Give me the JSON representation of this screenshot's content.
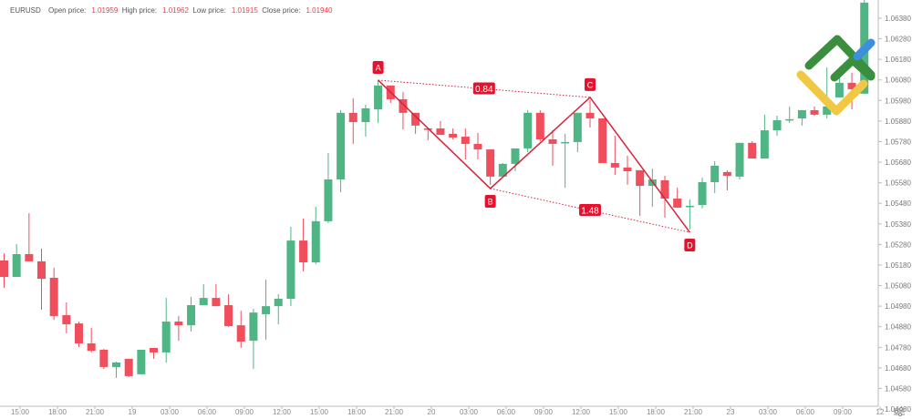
{
  "header": {
    "symbol": "EURUSD",
    "open_label": "Open price:",
    "open_value": "1.01959",
    "high_label": "High price:",
    "high_value": "1.01962",
    "low_label": "Low price:",
    "low_value": "1.01915",
    "close_label": "Close price:",
    "close_value": "1.01940"
  },
  "colors": {
    "up": "#4fb584",
    "down": "#f04e5c",
    "pattern": "#d9213a",
    "label_bg": "#e8112d"
  },
  "chart_data": {
    "type": "candlestick",
    "title": "EURUSD",
    "interval": "1h",
    "ylim": [
      1.0448,
      1.0638
    ],
    "yticks": [
      "1.06380",
      "1.06280",
      "1.06180",
      "1.06080",
      "1.05980",
      "1.05880",
      "1.05780",
      "1.05680",
      "1.05580",
      "1.05480",
      "1.05380",
      "1.05280",
      "1.05180",
      "1.05080",
      "1.04980",
      "1.04880",
      "1.04780",
      "1.04680",
      "1.04580",
      "1.04480"
    ],
    "xticks": [
      "15:00",
      "18:00",
      "21:00",
      "19",
      "03:00",
      "06:00",
      "09:00",
      "12:00",
      "15:00",
      "18:00",
      "21:00",
      "20",
      "03:00",
      "06:00",
      "09:00",
      "12:00",
      "15:00",
      "18:00",
      "21:00",
      "23",
      "03:00",
      "06:00",
      "09:00",
      "12"
    ],
    "grid": false,
    "candles": [
      [
        1.05202,
        1.05237,
        1.05069,
        1.05122
      ],
      [
        1.05122,
        1.05282,
        1.05122,
        1.05233
      ],
      [
        1.05233,
        1.05432,
        1.05198,
        1.05198
      ],
      [
        1.05198,
        1.0526,
        1.04963,
        1.05113
      ],
      [
        1.05118,
        1.05167,
        1.04914,
        1.04932
      ],
      [
        1.04936,
        1.04998,
        1.04848,
        1.04892
      ],
      [
        1.04896,
        1.04905,
        1.04781,
        1.04799
      ],
      [
        1.04799,
        1.04874,
        1.04755,
        1.04763
      ],
      [
        1.04768,
        1.04772,
        1.04675,
        1.04684
      ],
      [
        1.04684,
        1.0471,
        1.04631,
        1.04706
      ],
      [
        1.04724,
        1.04724,
        1.04635,
        1.0464
      ],
      [
        1.04649,
        1.04768,
        1.04649,
        1.04768
      ],
      [
        1.04777,
        1.04777,
        1.04724,
        1.04755
      ],
      [
        1.04755,
        1.0502,
        1.04706,
        1.04905
      ],
      [
        1.04905,
        1.04932,
        1.04812,
        1.04887
      ],
      [
        1.04887,
        1.05025,
        1.04857,
        1.04985
      ],
      [
        1.04985,
        1.05087,
        1.04985,
        1.0502
      ],
      [
        1.0502,
        1.05087,
        1.0498,
        1.0498
      ],
      [
        1.04985,
        1.05038,
        1.04879,
        1.04883
      ],
      [
        1.04887,
        1.04958,
        1.04777,
        1.04808
      ],
      [
        1.04812,
        1.04967,
        1.04675,
        1.04949
      ],
      [
        1.04941,
        1.05109,
        1.04817,
        1.0498
      ],
      [
        1.0498,
        1.05038,
        1.04892,
        1.05016
      ],
      [
        1.05016,
        1.05366,
        1.0498,
        1.05299
      ],
      [
        1.05299,
        1.05406,
        1.05149,
        1.05193
      ],
      [
        1.05193,
        1.05463,
        1.05184,
        1.05393
      ],
      [
        1.05393,
        1.05725,
        1.05384,
        1.05596
      ],
      [
        1.05596,
        1.05933,
        1.05534,
        1.0592
      ],
      [
        1.0592,
        1.05991,
        1.05769,
        1.05875
      ],
      [
        1.05875,
        1.0596,
        1.05804,
        1.05942
      ],
      [
        1.05937,
        1.06079,
        1.05871,
        1.06053
      ],
      [
        1.06053,
        1.06053,
        1.05968,
        1.05986
      ],
      [
        1.05986,
        1.06022,
        1.0584,
        1.0592
      ],
      [
        1.0592,
        1.0592,
        1.05818,
        1.05858
      ],
      [
        1.05844,
        1.05844,
        1.05787,
        1.0584
      ],
      [
        1.05844,
        1.0588,
        1.05813,
        1.05813
      ],
      [
        1.05818,
        1.05844,
        1.05791,
        1.058
      ],
      [
        1.05804,
        1.05844,
        1.05694,
        1.05769
      ],
      [
        1.05769,
        1.05822,
        1.05694,
        1.05742
      ],
      [
        1.05742,
        1.05742,
        1.0557,
        1.0561
      ],
      [
        1.0561,
        1.05676,
        1.0561,
        1.05672
      ],
      [
        1.05672,
        1.05747,
        1.05636,
        1.05747
      ],
      [
        1.05747,
        1.05933,
        1.05729,
        1.0592
      ],
      [
        1.0592,
        1.05933,
        1.05782,
        1.05791
      ],
      [
        1.05791,
        1.05835,
        1.05663,
        1.05769
      ],
      [
        1.05774,
        1.05818,
        1.05556,
        1.05778
      ],
      [
        1.05778,
        1.0592,
        1.05729,
        1.0592
      ],
      [
        1.0592,
        1.05982,
        1.05849,
        1.05893
      ],
      [
        1.05893,
        1.05893,
        1.05676,
        1.05676
      ],
      [
        1.05676,
        1.05809,
        1.05618,
        1.05654
      ],
      [
        1.05654,
        1.05711,
        1.0557,
        1.05636
      ],
      [
        1.05641,
        1.05641,
        1.05419,
        1.05565
      ],
      [
        1.05565,
        1.05649,
        1.05463,
        1.05596
      ],
      [
        1.05592,
        1.05614,
        1.0541,
        1.05503
      ],
      [
        1.05503,
        1.05556,
        1.05459,
        1.05459
      ],
      [
        1.05463,
        1.05499,
        1.05353,
        1.05468
      ],
      [
        1.05472,
        1.05605,
        1.05455,
        1.05583
      ],
      [
        1.05583,
        1.05685,
        1.0553,
        1.05663
      ],
      [
        1.05632,
        1.05641,
        1.05543,
        1.05614
      ],
      [
        1.0561,
        1.05774,
        1.05596,
        1.05774
      ],
      [
        1.05774,
        1.05782,
        1.05698,
        1.05698
      ],
      [
        1.05698,
        1.05911,
        1.05698,
        1.05835
      ],
      [
        1.05835,
        1.05906,
        1.05809,
        1.05884
      ],
      [
        1.05884,
        1.05951,
        1.05871,
        1.05889
      ],
      [
        1.05893,
        1.05933,
        1.05858,
        1.05933
      ],
      [
        1.05933,
        1.05951,
        1.05906,
        1.05911
      ],
      [
        1.05911,
        1.06141,
        1.05893,
        1.05951
      ],
      [
        1.05995,
        1.06101,
        1.05995,
        1.06066
      ],
      [
        1.06066,
        1.06115,
        1.05937,
        1.06035
      ],
      [
        1.06013,
        1.06469,
        1.06013,
        1.06456
      ]
    ],
    "pattern": {
      "points": [
        {
          "label": "A",
          "index": 30,
          "price": 1.06079
        },
        {
          "label": "B",
          "index": 39,
          "price": 1.05552
        },
        {
          "label": "C",
          "index": 47,
          "price": 1.05995
        },
        {
          "label": "D",
          "index": 55,
          "price": 1.05339
        }
      ],
      "ratios": [
        {
          "from": "A",
          "to": "C",
          "value": "0.84"
        },
        {
          "from": "B",
          "to": "D",
          "value": "1.48"
        }
      ]
    }
  }
}
